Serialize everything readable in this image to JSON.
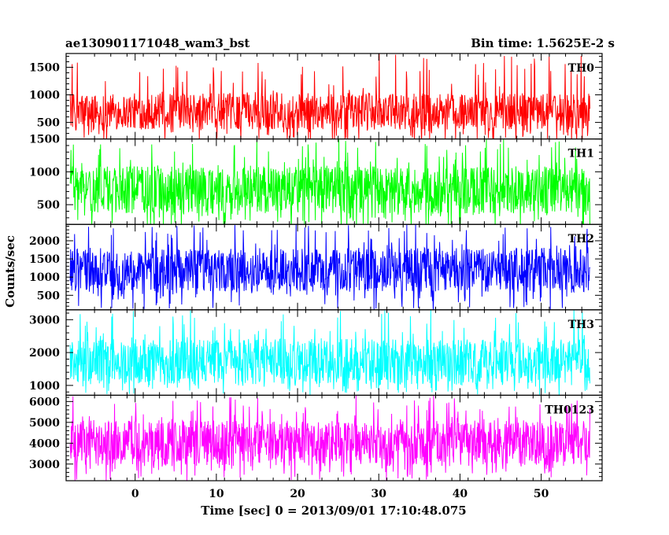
{
  "header": {
    "title": "ae130901171048_wam3_bst",
    "bin_time": "Bin time: 1.5625E-2 s"
  },
  "chart_data": {
    "type": "line",
    "title": "ae130901171048_wam3_bst",
    "xlabel": "Time [sec] 0 = 2013/09/01 17:10:48.075",
    "ylabel": "Counts/sec",
    "xlim": [
      -8.5,
      57.5
    ],
    "xticks": [
      0,
      10,
      20,
      30,
      40,
      50
    ],
    "bin_time_s": 0.015625,
    "series_x_range": [
      -8.0,
      56.0
    ],
    "panels": [
      {
        "name": "TH0",
        "color": "#ff0000",
        "ylim": [
          200,
          1750
        ],
        "yticks": [
          500,
          1000,
          1500
        ],
        "typical_low": 400,
        "typical_high": 1000,
        "min": 100,
        "max": 1750
      },
      {
        "name": "TH1",
        "color": "#00ff00",
        "ylim": [
          200,
          1500
        ],
        "yticks": [
          500,
          1000,
          1500
        ],
        "typical_low": 400,
        "typical_high": 1050,
        "min": 150,
        "max": 1500
      },
      {
        "name": "TH2",
        "color": "#0000ff",
        "ylim": [
          100,
          2450
        ],
        "yticks": [
          500,
          1000,
          1500,
          2000
        ],
        "typical_low": 650,
        "typical_high": 1750,
        "min": 100,
        "max": 2450
      },
      {
        "name": "TH3",
        "color": "#00ffff",
        "ylim": [
          700,
          3300
        ],
        "yticks": [
          1000,
          2000,
          3000
        ],
        "typical_low": 1100,
        "typical_high": 2350,
        "min": 700,
        "max": 3300
      },
      {
        "name": "TH0123",
        "color": "#ff00ff",
        "ylim": [
          2200,
          6300
        ],
        "yticks": [
          3000,
          4000,
          5000,
          6000
        ],
        "typical_low": 3000,
        "typical_high": 5000,
        "min": 2200,
        "max": 6300
      }
    ]
  }
}
